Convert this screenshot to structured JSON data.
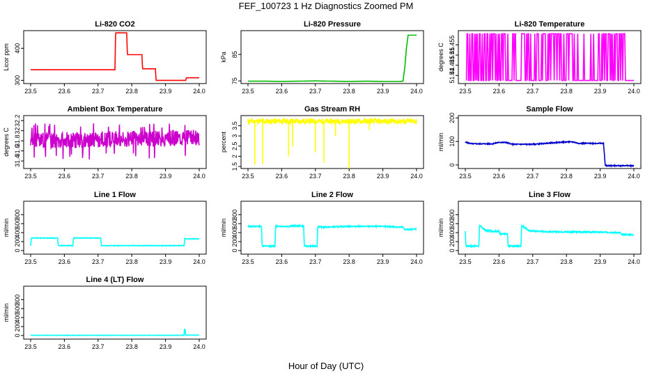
{
  "page": {
    "title": "FEF_100723 1 Hz Diagnostics Zoomed PM",
    "xlabel": "Hour of Day (UTC)"
  },
  "chart_data": [
    {
      "type": "line",
      "title": "Li-820 CO2",
      "ylabel": "Licor ppm",
      "color": "#ff0000",
      "xlim": [
        23.5,
        24.0
      ],
      "ylim": [
        290,
        455
      ],
      "xticks": [
        "23.5",
        "23.6",
        "23.7",
        "23.8",
        "23.9",
        "24.0"
      ],
      "yticks": [
        300,
        400
      ],
      "series": [
        {
          "x": [
            23.5,
            23.75,
            23.752,
            23.785,
            23.787,
            23.83,
            23.832,
            23.87,
            23.872,
            23.96,
            23.962,
            24.0
          ],
          "y": [
            333,
            333,
            448,
            448,
            380,
            380,
            336,
            336,
            300,
            300,
            308,
            308
          ]
        }
      ]
    },
    {
      "type": "line",
      "title": "Li-820 Pressure",
      "ylabel": "kPa",
      "color": "#00bb00",
      "xlim": [
        23.5,
        24.0
      ],
      "ylim": [
        74,
        94
      ],
      "xticks": [
        "23.5",
        "23.6",
        "23.7",
        "23.8",
        "23.9",
        "24.0"
      ],
      "yticks": [
        75,
        85
      ],
      "series": [
        {
          "x": [
            23.5,
            23.55,
            23.6,
            23.65,
            23.7,
            23.75,
            23.8,
            23.85,
            23.9,
            23.95,
            23.96,
            23.965,
            23.97,
            23.975,
            24.0
          ],
          "y": [
            74.9,
            74.9,
            74.8,
            74.9,
            75.0,
            74.9,
            74.8,
            74.9,
            74.8,
            74.8,
            74.9,
            80.0,
            87.5,
            92.3,
            92.3
          ]
        }
      ]
    },
    {
      "type": "line",
      "title": "Li-820 Temperature",
      "ylabel": "degrees C",
      "color": "#ff00ff",
      "xlim": [
        23.5,
        24.0
      ],
      "ylim": [
        51.436,
        51.462
      ],
      "xticks": [
        "23.5",
        "23.6",
        "23.7",
        "23.8",
        "23.9",
        "24.0"
      ],
      "yticks": [
        51.44,
        51.445,
        51.45,
        51.455
      ],
      "style": "binary",
      "levels": [
        51.4375,
        51.4605
      ],
      "span": [
        23.503,
        23.975
      ],
      "seed": 7,
      "hi_prob": 0.42
    },
    {
      "type": "line",
      "title": "Ambient Box Temperature",
      "ylabel": "degrees C",
      "color": "#cc00cc",
      "xlim": [
        23.5,
        24.0
      ],
      "ylim": [
        31.25,
        32.3
      ],
      "xticks": [
        "23.5",
        "23.6",
        "23.7",
        "23.8",
        "23.9",
        "24.0"
      ],
      "yticks": [
        31.4,
        31.6,
        31.8,
        32.0,
        32.2
      ],
      "style": "noise",
      "base": 31.8,
      "amp": 0.16,
      "trend": 0.06,
      "spike_low": 31.4,
      "spike_high": 32.15,
      "seed": 3
    },
    {
      "type": "line",
      "title": "Gas Stream RH",
      "ylabel": "percent",
      "color": "#ffff00",
      "xlim": [
        23.5,
        24.0
      ],
      "ylim": [
        1.4,
        4.0
      ],
      "xticks": [
        "23.5",
        "23.6",
        "23.7",
        "23.8",
        "23.9",
        "24.0"
      ],
      "yticks": [
        1.5,
        2.0,
        2.5,
        3.0,
        3.5
      ],
      "style": "noise",
      "base": 3.72,
      "amp": 0.13,
      "trend": 0.0,
      "seed": 11,
      "dips": [
        [
          23.52,
          1.6
        ],
        [
          23.543,
          1.62
        ],
        [
          23.62,
          2.0
        ],
        [
          23.633,
          2.5
        ],
        [
          23.7,
          2.2
        ],
        [
          23.725,
          1.7
        ],
        [
          23.76,
          3.0
        ],
        [
          23.8,
          1.4
        ],
        [
          23.86,
          3.3
        ]
      ]
    },
    {
      "type": "line",
      "title": "Sample Flow",
      "ylabel": "ml/min",
      "color": "#0000cc",
      "xlim": [
        23.5,
        24.0
      ],
      "ylim": [
        -15,
        210
      ],
      "xticks": [
        "23.5",
        "23.6",
        "23.7",
        "23.8",
        "23.9",
        "24.0"
      ],
      "yticks": [
        0,
        100,
        200
      ],
      "style": "steps",
      "noise": 2,
      "seed": 5,
      "series": [
        {
          "x": [
            23.5,
            23.52,
            23.58,
            23.6,
            23.62,
            23.64,
            23.7,
            23.75,
            23.8,
            23.82,
            23.835,
            23.91,
            23.915,
            24.0
          ],
          "y": [
            97,
            90,
            90,
            96,
            96,
            88,
            88,
            93,
            98,
            98,
            92,
            92,
            -3,
            -3
          ]
        }
      ]
    },
    {
      "type": "line",
      "title": "Line 1 Flow",
      "ylabel": "ml/min",
      "color": "#00ffff",
      "xlim": [
        23.5,
        24.0
      ],
      "ylim": [
        -80,
        1100
      ],
      "xticks": [
        "23.5",
        "23.6",
        "23.7",
        "23.8",
        "23.9",
        "24.0"
      ],
      "yticks": [
        0,
        200,
        400,
        600,
        800
      ],
      "style": "steps",
      "noise": 6,
      "seed": 9,
      "series": [
        {
          "x": [
            23.5,
            23.502,
            23.58,
            23.582,
            23.625,
            23.627,
            23.708,
            23.71,
            23.955,
            23.957,
            24.0
          ],
          "y": [
            110,
            280,
            280,
            110,
            110,
            280,
            280,
            110,
            110,
            260,
            260
          ]
        }
      ]
    },
    {
      "type": "line",
      "title": "Line 2 Flow",
      "ylabel": "ml/min",
      "color": "#00ffff",
      "xlim": [
        23.5,
        24.0
      ],
      "ylim": [
        -80,
        1100
      ],
      "xticks": [
        "23.5",
        "23.6",
        "23.7",
        "23.8",
        "23.9",
        "24.0"
      ],
      "yticks": [
        0,
        200,
        400,
        600,
        800
      ],
      "style": "steps",
      "noise": 12,
      "seed": 13,
      "series": [
        {
          "x": [
            23.5,
            23.54,
            23.542,
            23.58,
            23.582,
            23.625,
            23.627,
            23.665,
            23.667,
            23.705,
            23.707,
            23.72,
            23.8,
            23.9,
            23.96,
            23.965,
            24.0
          ],
          "y": [
            540,
            540,
            100,
            100,
            540,
            540,
            550,
            550,
            100,
            100,
            540,
            520,
            540,
            540,
            520,
            470,
            480
          ]
        }
      ]
    },
    {
      "type": "line",
      "title": "Line 3 Flow",
      "ylabel": "ml/min",
      "color": "#00ffff",
      "xlim": [
        23.5,
        24.0
      ],
      "ylim": [
        -80,
        1100
      ],
      "xticks": [
        "23.5",
        "23.6",
        "23.7",
        "23.8",
        "23.9",
        "24.0"
      ],
      "yticks": [
        0,
        200,
        400,
        600,
        800
      ],
      "style": "steps",
      "noise": 14,
      "seed": 17,
      "series": [
        {
          "x": [
            23.5,
            23.502,
            23.504,
            23.54,
            23.542,
            23.56,
            23.58,
            23.6,
            23.602,
            23.625,
            23.627,
            23.665,
            23.667,
            23.69,
            23.75,
            23.9,
            23.96,
            23.962,
            24.0
          ],
          "y": [
            420,
            100,
            100,
            100,
            560,
            450,
            430,
            430,
            370,
            370,
            100,
            100,
            560,
            440,
            420,
            410,
            400,
            360,
            350
          ]
        }
      ]
    },
    {
      "type": "line",
      "title": "Line 4 (LT) Flow",
      "ylabel": "ml/min",
      "color": "#00ffff",
      "xlim": [
        23.5,
        24.0
      ],
      "ylim": [
        -80,
        1100
      ],
      "xticks": [
        "23.5",
        "23.6",
        "23.7",
        "23.8",
        "23.9",
        "24.0"
      ],
      "yticks": [
        0,
        200,
        400,
        600,
        800
      ],
      "style": "steps",
      "noise": 3,
      "seed": 19,
      "series": [
        {
          "x": [
            23.5,
            23.955,
            23.956,
            23.958,
            23.96,
            24.0
          ],
          "y": [
            5,
            5,
            140,
            140,
            10,
            8
          ]
        }
      ]
    }
  ]
}
